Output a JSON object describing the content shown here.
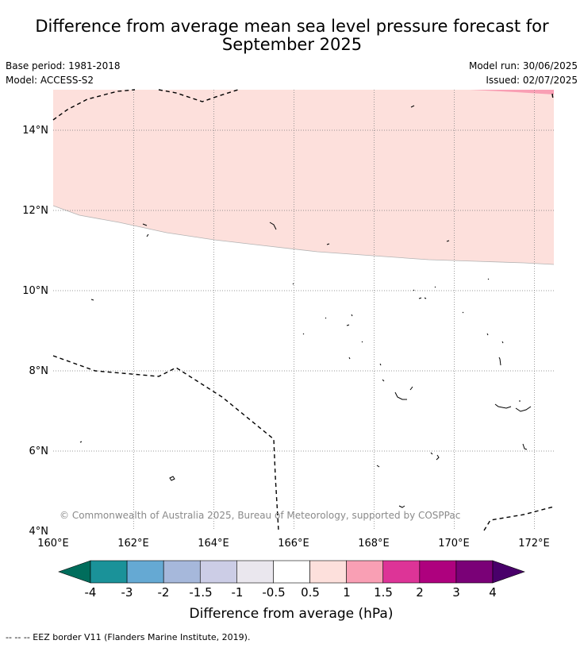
{
  "title_line1": "Difference from average mean sea level pressure forecast for",
  "title_line2": "September 2025",
  "base_period": "Base period: 1981-2018",
  "model": "Model: ACCESS-S2",
  "model_run": "Model run: 30/06/2025",
  "issued": "Issued: 02/07/2025",
  "copyright": "© Commonwealth of Australia 2025, Bureau of Meteorology, supported by COSPPac",
  "map": {
    "lat_ticks": [
      "14°N",
      "12°N",
      "10°N",
      "8°N",
      "6°N",
      "4°N"
    ],
    "lon_ticks": [
      "160°E",
      "162°E",
      "164°E",
      "166°E",
      "168°E",
      "170°E",
      "172°E"
    ],
    "anomaly_regions": [
      {
        "range": "0.5 to 1",
        "color": "#fde0dc"
      },
      {
        "range": "1 to 1.5",
        "color": "#f99fb4"
      }
    ]
  },
  "legend": {
    "title": "Difference from average (hPa)",
    "tick_labels": [
      "-4",
      "-3",
      "-2",
      "-1.5",
      "-1",
      "-0.5",
      "0.5",
      "1",
      "1.5",
      "2",
      "3",
      "4"
    ],
    "colors": [
      "#006d5c",
      "#1a9299",
      "#65a9d3",
      "#a6b8db",
      "#cccde6",
      "#eae7ee",
      "#ffffff",
      "#fde0dc",
      "#f99fb4",
      "#dd3497",
      "#ae017e",
      "#7a0177",
      "#49006a"
    ]
  },
  "footnote": "--  --  -- EEZ border V11 (Flanders Marine Institute, 2019)."
}
